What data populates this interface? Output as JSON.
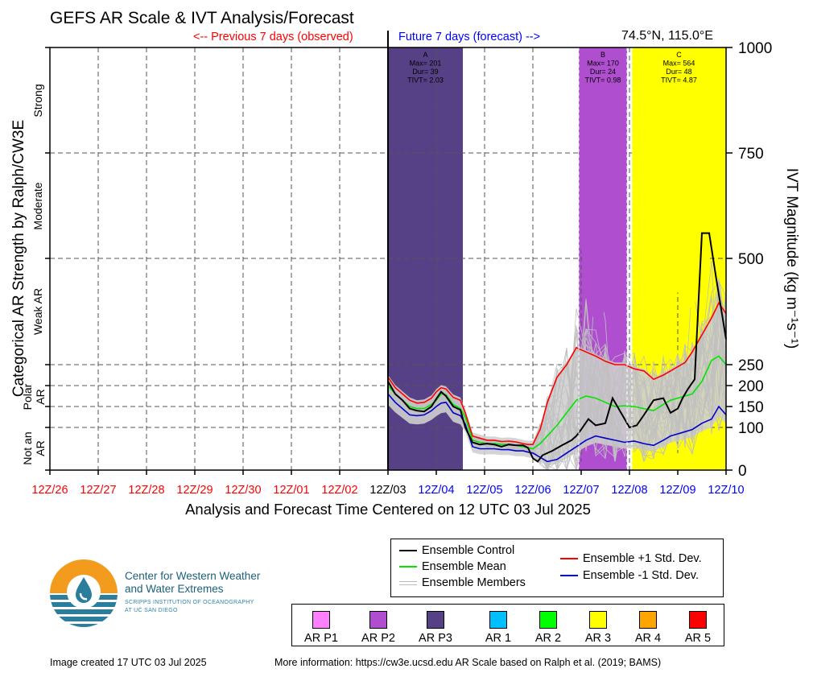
{
  "header": {
    "title": "GEFS AR Scale & IVT Analysis/Forecast",
    "previous_label": "<-- Previous 7 days (observed)",
    "future_label": "Future 7 days (forecast) -->",
    "location": "74.5°N, 115.0°E"
  },
  "axes": {
    "x_title": "Analysis and Forecast Time Centered on 12 UTC 03 Jul 2025",
    "left_title": "Categorical AR Strength by Ralph/CW3E",
    "right_title": "IVT Magnitude (kg m⁻¹s⁻¹)",
    "categories": [
      "Strong",
      "Moderate",
      "Weak AR",
      "Polar AR",
      "Not an AR"
    ]
  },
  "chart_data": {
    "type": "line",
    "y_ticks": [
      0,
      100,
      150,
      200,
      250,
      500,
      750,
      1000
    ],
    "ylim": [
      0,
      1000
    ],
    "x_ticks": [
      "12Z/26",
      "12Z/27",
      "12Z/28",
      "12Z/29",
      "12Z/30",
      "12Z/01",
      "12Z/02",
      "12Z/03",
      "12Z/04",
      "12Z/05",
      "12Z/06",
      "12Z/07",
      "12Z/08",
      "12Z/09",
      "12Z/10"
    ],
    "x_tick_colors": [
      "#ff0000",
      "#ff0000",
      "#ff0000",
      "#ff0000",
      "#ff0000",
      "#ff0000",
      "#ff0000",
      "#000000",
      "#0000ff",
      "#0000ff",
      "#0000ff",
      "#0000ff",
      "#0000ff",
      "#0000ff",
      "#0000ff"
    ],
    "x_unit": "days from 12Z/26",
    "xlim": [
      0,
      14
    ],
    "ar_events": [
      {
        "label": "A",
        "max": "Max= 201",
        "dur": "Dur= 39",
        "tivt": "TIVT= 2.03",
        "start": 7.0,
        "end": 8.55,
        "color": "#574186",
        "category": "AR P3"
      },
      {
        "label": "B",
        "max": "Max= 170",
        "dur": "Dur= 24",
        "tivt": "TIVT= 0.98",
        "start": 10.95,
        "end": 11.95,
        "color": "#b04ed0",
        "category": "AR P2"
      },
      {
        "label": "C",
        "max": "Max= 564",
        "dur": "Dur= 48",
        "tivt": "TIVT= 4.87",
        "start": 12.05,
        "end": 14.0,
        "color": "#ffff00",
        "category": "AR 3"
      }
    ],
    "series": [
      {
        "name": "Ensemble Control",
        "color": "#000000",
        "x": [
          7.0,
          7.15,
          7.3,
          7.45,
          7.6,
          7.75,
          7.9,
          8.0,
          8.1,
          8.2,
          8.35,
          8.5,
          8.6,
          8.75,
          8.9,
          9.05,
          9.2,
          9.35,
          9.5,
          9.65,
          9.8,
          9.9,
          10.0,
          10.1,
          10.2,
          10.4,
          10.6,
          10.8,
          10.9,
          11.0,
          11.15,
          11.3,
          11.5,
          11.65,
          11.8,
          12.0,
          12.15,
          12.3,
          12.5,
          12.7,
          12.85,
          13.0,
          13.1,
          13.2,
          13.35,
          13.5,
          13.65,
          13.8,
          14.0
        ],
        "y": [
          210,
          180,
          165,
          145,
          140,
          138,
          150,
          168,
          185,
          175,
          150,
          142,
          100,
          65,
          60,
          62,
          60,
          55,
          60,
          58,
          58,
          52,
          28,
          20,
          35,
          45,
          58,
          70,
          80,
          95,
          120,
          105,
          110,
          170,
          140,
          100,
          105,
          130,
          165,
          170,
          135,
          145,
          170,
          190,
          215,
          560,
          560,
          450,
          310
        ]
      },
      {
        "name": "Ensemble Mean",
        "color": "#00e600",
        "x": [
          7.0,
          7.15,
          7.3,
          7.45,
          7.6,
          7.75,
          7.9,
          8.0,
          8.1,
          8.2,
          8.35,
          8.5,
          8.6,
          8.75,
          8.9,
          9.05,
          9.2,
          9.35,
          9.5,
          9.65,
          9.8,
          9.9,
          10.0,
          10.15,
          10.3,
          10.5,
          10.7,
          10.9,
          11.1,
          11.3,
          11.5,
          11.7,
          11.9,
          12.1,
          12.3,
          12.5,
          12.7,
          12.85,
          13.0,
          13.15,
          13.3,
          13.5,
          13.7,
          13.85,
          14.0
        ],
        "y": [
          200,
          180,
          165,
          150,
          145,
          145,
          155,
          165,
          180,
          178,
          155,
          145,
          125,
          70,
          65,
          62,
          62,
          60,
          60,
          58,
          55,
          52,
          50,
          62,
          80,
          105,
          135,
          165,
          175,
          170,
          160,
          150,
          152,
          150,
          145,
          140,
          155,
          165,
          170,
          175,
          180,
          210,
          260,
          270,
          250
        ]
      },
      {
        "name": "Ensemble +1 Std. Dev.",
        "color": "#ff0000",
        "x": [
          7.0,
          7.15,
          7.3,
          7.45,
          7.6,
          7.75,
          7.9,
          8.0,
          8.1,
          8.2,
          8.35,
          8.5,
          8.6,
          8.75,
          8.9,
          9.05,
          9.2,
          9.35,
          9.5,
          9.65,
          9.8,
          9.9,
          10.0,
          10.15,
          10.3,
          10.5,
          10.7,
          10.9,
          11.1,
          11.3,
          11.5,
          11.7,
          11.9,
          12.1,
          12.3,
          12.5,
          12.7,
          12.85,
          13.0,
          13.15,
          13.3,
          13.5,
          13.7,
          13.85,
          14.0
        ],
        "y": [
          220,
          195,
          180,
          165,
          158,
          160,
          170,
          185,
          195,
          192,
          172,
          165,
          135,
          80,
          75,
          70,
          70,
          67,
          68,
          66,
          62,
          60,
          60,
          95,
          160,
          220,
          250,
          290,
          280,
          270,
          258,
          250,
          250,
          240,
          235,
          215,
          225,
          235,
          245,
          255,
          280,
          320,
          360,
          395,
          370
        ]
      },
      {
        "name": "Ensemble -1 Std. Dev.",
        "color": "#0000cc",
        "x": [
          7.0,
          7.15,
          7.3,
          7.45,
          7.6,
          7.75,
          7.9,
          8.0,
          8.1,
          8.2,
          8.35,
          8.5,
          8.6,
          8.75,
          8.9,
          9.05,
          9.2,
          9.35,
          9.5,
          9.65,
          9.8,
          9.9,
          10.0,
          10.15,
          10.3,
          10.5,
          10.7,
          10.9,
          11.1,
          11.3,
          11.5,
          11.7,
          11.9,
          12.1,
          12.3,
          12.5,
          12.7,
          12.85,
          13.0,
          13.15,
          13.3,
          13.5,
          13.7,
          13.85,
          14.0
        ],
        "y": [
          180,
          160,
          145,
          130,
          128,
          130,
          140,
          150,
          158,
          160,
          135,
          128,
          108,
          55,
          50,
          50,
          50,
          48,
          48,
          45,
          45,
          42,
          40,
          30,
          20,
          25,
          40,
          55,
          70,
          80,
          75,
          70,
          65,
          68,
          62,
          58,
          70,
          80,
          85,
          90,
          95,
          110,
          120,
          150,
          130
        ]
      }
    ],
    "members_label": "Ensemble Members",
    "members_color": "#c0c0c0"
  },
  "legend": {
    "control": "Ensemble Control",
    "mean": "Ensemble Mean",
    "members": "Ensemble Members",
    "plus": "Ensemble +1 Std. Dev.",
    "minus": "Ensemble -1 Std. Dev."
  },
  "categories_legend": [
    {
      "label": "AR P1",
      "color": "#ff80ff"
    },
    {
      "label": "AR P2",
      "color": "#b04ed0"
    },
    {
      "label": "AR P3",
      "color": "#574186"
    },
    {
      "label": "AR 1",
      "color": "#00bfff"
    },
    {
      "label": "AR 2",
      "color": "#00ff00"
    },
    {
      "label": "AR 3",
      "color": "#ffff00"
    },
    {
      "label": "AR 4",
      "color": "#ffa500"
    },
    {
      "label": "AR 5",
      "color": "#ff0000"
    }
  ],
  "logo": {
    "line1": "Center for Western Weather",
    "line2": "and Water Extremes",
    "line3": "SCRIPPS INSTITUTION OF OCEANOGRAPHY",
    "line4": "AT UC SAN DIEGO"
  },
  "footer": {
    "created": "Image created 17 UTC 03 Jul 2025",
    "info": "More information: https://cw3e.ucsd.edu AR Scale based on Ralph et al. (2019; BAMS)"
  }
}
